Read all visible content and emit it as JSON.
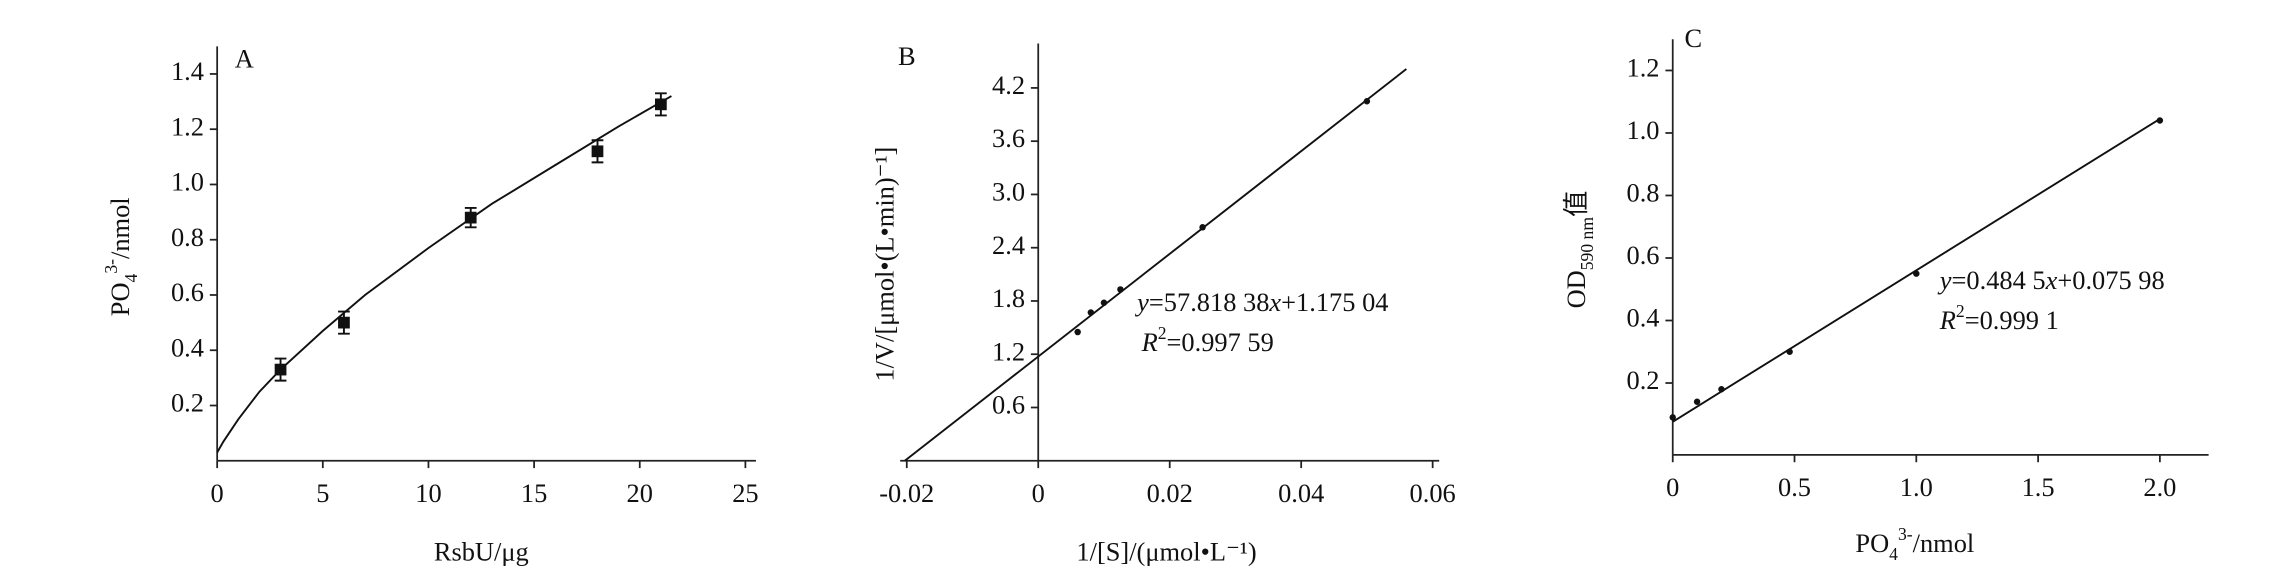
{
  "chart_data": [
    {
      "type": "scatter",
      "panel": "A",
      "x_label": [
        "RsbU/μg"
      ],
      "y_label": [
        "PO",
        "4",
        "3-",
        "/nmol"
      ],
      "xlim": [
        0,
        25.5
      ],
      "xticks": [
        0,
        5,
        10,
        15,
        20,
        25
      ],
      "ylim": [
        0,
        1.5
      ],
      "yticks": [
        0.2,
        0.4,
        0.6,
        0.8,
        {
          "value": 1,
          "label": "1.0"
        },
        1.2,
        1.4
      ],
      "series": [
        {
          "mode": "markers",
          "color": "#111111",
          "x": [
            3,
            6,
            12,
            18,
            21
          ],
          "values": [
            0.33,
            0.5,
            0.88,
            1.12,
            1.29
          ],
          "errors": [
            0.04,
            0.04,
            0.035,
            0.04,
            0.04
          ]
        },
        {
          "mode": "line",
          "color": "#111111",
          "x": [
            0,
            0.3,
            1,
            2,
            3,
            5,
            7,
            10,
            13,
            16,
            19,
            21.5
          ],
          "values": [
            0.03,
            0.07,
            0.15,
            0.25,
            0.33,
            0.47,
            0.6,
            0.77,
            0.93,
            1.07,
            1.21,
            1.32
          ]
        }
      ],
      "annotations": []
    },
    {
      "type": "scatter",
      "panel": "B",
      "x_label": [
        "1/[S]/(μmol•L⁻¹)"
      ],
      "y_label": [
        "1/V/[μmol•(L•min)⁻¹]"
      ],
      "xlim": [
        -0.021,
        0.061
      ],
      "xticks": [
        -0.02,
        0,
        0.02,
        0.04,
        0.06
      ],
      "ylim": [
        0,
        4.7
      ],
      "yticks": [
        0.6,
        1.2,
        1.8,
        2.4,
        {
          "value": 3,
          "label": "3.0"
        },
        3.6,
        4.2
      ],
      "series": [
        {
          "mode": "markers",
          "color": "#111111",
          "x": [
            0.006,
            0.008,
            0.01,
            0.0125,
            0.025,
            0.05
          ],
          "values": [
            1.45,
            1.67,
            1.78,
            1.93,
            2.63,
            4.05
          ]
        },
        {
          "mode": "line",
          "color": "#111111",
          "x": [
            -0.0203,
            0.056
          ],
          "values": [
            0,
            4.413
          ]
        }
      ],
      "annotations": [
        [
          "y",
          "=57.818 38",
          "x",
          "+1.175 04"
        ],
        [
          "R",
          "2",
          "=0.997 59"
        ]
      ]
    },
    {
      "type": "scatter",
      "panel": "C",
      "x_label": [
        "PO",
        "4",
        "3-",
        "/nmol"
      ],
      "y_label": [
        "OD",
        "590 nm",
        "值"
      ],
      "xlim": [
        0,
        2.2
      ],
      "xticks": [
        0,
        0.5,
        {
          "value": 1,
          "label": "1.0"
        },
        1.5,
        {
          "value": 2,
          "label": "2.0"
        }
      ],
      "ylim": [
        -0.03,
        1.3
      ],
      "yticks": [
        0.2,
        0.4,
        0.6,
        0.8,
        {
          "value": 1,
          "label": "1.0"
        },
        1.2
      ],
      "series": [
        {
          "mode": "markers",
          "color": "#111111",
          "x": [
            0,
            0.1,
            0.2,
            0.48,
            1,
            2
          ],
          "values": [
            0.09,
            0.14,
            0.18,
            0.3,
            0.55,
            1.04
          ]
        },
        {
          "mode": "line",
          "color": "#111111",
          "x": [
            0,
            2
          ],
          "values": [
            0.076,
            1.045
          ]
        }
      ],
      "annotations": [
        [
          "y",
          "=0.484 5",
          "x",
          "+0.075 98"
        ],
        [
          "R",
          "2",
          "=0.999 1"
        ]
      ]
    }
  ]
}
